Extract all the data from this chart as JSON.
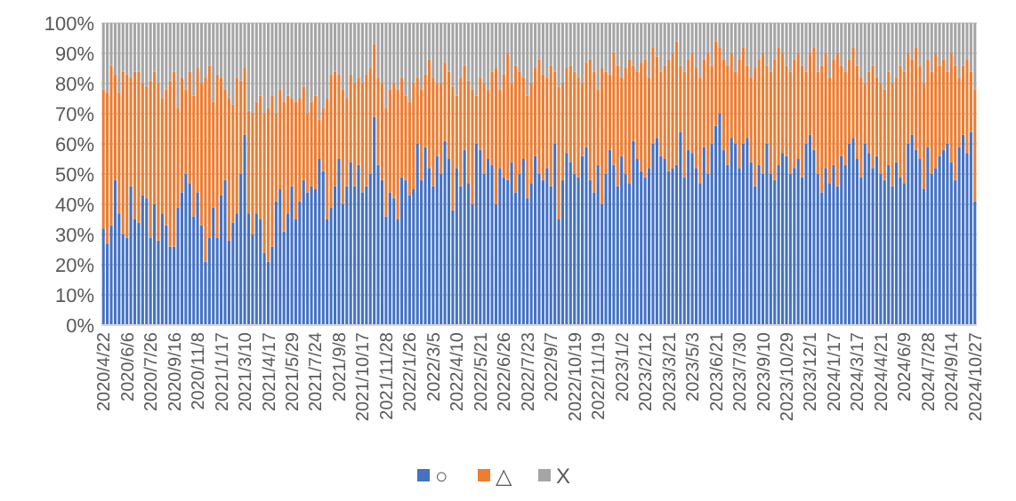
{
  "chart_data": {
    "type": "bar",
    "stacked": true,
    "categories": [
      "2020/4/22",
      null,
      null,
      null,
      null,
      null,
      "2020/6/6",
      null,
      null,
      null,
      null,
      null,
      "2020/7/26",
      null,
      null,
      null,
      null,
      null,
      "2020/9/16",
      null,
      null,
      null,
      null,
      null,
      "2020/11/8",
      null,
      null,
      null,
      null,
      null,
      "2021/1/17",
      null,
      null,
      null,
      null,
      null,
      "2021/3/10",
      null,
      null,
      null,
      null,
      null,
      "2021/4/17",
      null,
      null,
      null,
      null,
      null,
      "2021/5/29",
      null,
      null,
      null,
      null,
      null,
      "2021/7/24",
      null,
      null,
      null,
      null,
      null,
      "2021/9/8",
      null,
      null,
      null,
      null,
      null,
      "2021/10/17",
      null,
      null,
      null,
      null,
      null,
      "2021/11/28",
      null,
      null,
      null,
      null,
      null,
      "2022/1/26",
      null,
      null,
      null,
      null,
      null,
      "2022/3/5",
      null,
      null,
      null,
      null,
      null,
      "2022/4/10",
      null,
      null,
      null,
      null,
      null,
      "2022/5/21",
      null,
      null,
      null,
      null,
      null,
      "2022/6/26",
      null,
      null,
      null,
      null,
      null,
      "2022/7/23",
      null,
      null,
      null,
      null,
      null,
      "2022/9/7",
      null,
      null,
      null,
      null,
      null,
      "2022/10/19",
      null,
      null,
      null,
      null,
      null,
      "2022/11/19",
      null,
      null,
      null,
      null,
      null,
      "2023/1/2",
      null,
      null,
      null,
      null,
      null,
      "2023/2/12",
      null,
      null,
      null,
      null,
      null,
      "2023/3/21",
      null,
      null,
      null,
      null,
      null,
      "2023/5/3",
      null,
      null,
      null,
      null,
      null,
      "2023/6/21",
      null,
      null,
      null,
      null,
      null,
      "2023/7/30",
      null,
      null,
      null,
      null,
      null,
      "2023/9/10",
      null,
      null,
      null,
      null,
      null,
      "2023/10/29",
      null,
      null,
      null,
      null,
      null,
      "2023/12/1",
      null,
      null,
      null,
      null,
      null,
      "2024/1/17",
      null,
      null,
      null,
      null,
      null,
      "2024/3/17",
      null,
      null,
      null,
      null,
      null,
      "2024/4/21",
      null,
      null,
      null,
      null,
      null,
      "2024/6/9",
      null,
      null,
      null,
      null,
      null,
      "2024/7/28",
      null,
      null,
      null,
      null,
      null,
      "2024/9/14",
      null,
      null,
      null,
      null,
      null,
      "2024/10/27"
    ],
    "series": [
      {
        "name": "○",
        "color": "#4472c4",
        "values": [
          32,
          27,
          33,
          48,
          37,
          30,
          29,
          46,
          35,
          34,
          43,
          42,
          29,
          40,
          28,
          37,
          33,
          26,
          26,
          39,
          44,
          50,
          47,
          36,
          44,
          33,
          21,
          29,
          39,
          29,
          43,
          48,
          28,
          34,
          37,
          50,
          63,
          37,
          30,
          37,
          35,
          24,
          21,
          26,
          41,
          45,
          31,
          37,
          46,
          35,
          41,
          48,
          44,
          46,
          45,
          55,
          51,
          35,
          39,
          46,
          55,
          40,
          46,
          54,
          46,
          53,
          44,
          46,
          50,
          69,
          53,
          48,
          36,
          44,
          42,
          35,
          49,
          48,
          43,
          45,
          60,
          48,
          59,
          52,
          46,
          56,
          50,
          61,
          55,
          38,
          52,
          46,
          58,
          47,
          40,
          60,
          58,
          50,
          55,
          53,
          40,
          52,
          49,
          48,
          54,
          44,
          50,
          55,
          42,
          47,
          56,
          50,
          48,
          52,
          46,
          60,
          35,
          48,
          57,
          54,
          50,
          49,
          56,
          59,
          48,
          44,
          53,
          40,
          50,
          58,
          53,
          46,
          56,
          50,
          47,
          61,
          55,
          51,
          49,
          52,
          60,
          62,
          56,
          55,
          51,
          52,
          53,
          64,
          49,
          58,
          57,
          52,
          47,
          59,
          50,
          60,
          66,
          70,
          58,
          53,
          62,
          60,
          52,
          60,
          62,
          54,
          46,
          53,
          50,
          60,
          50,
          48,
          53,
          57,
          56,
          50,
          52,
          55,
          49,
          60,
          63,
          58,
          50,
          44,
          52,
          47,
          53,
          46,
          56,
          53,
          60,
          62,
          55,
          49,
          60,
          57,
          52,
          56,
          50,
          48,
          53,
          46,
          54,
          49,
          47,
          60,
          63,
          58,
          55,
          45,
          59,
          50,
          52,
          56,
          58,
          60,
          54,
          48,
          59,
          63,
          57,
          64,
          41
        ]
      },
      {
        "name": "△",
        "color": "#ed7d31",
        "values": [
          46,
          50,
          53,
          35,
          40,
          54,
          54,
          36,
          49,
          50,
          37,
          37,
          52,
          44,
          52,
          38,
          45,
          55,
          58,
          33,
          38,
          28,
          37,
          40,
          41,
          47,
          61,
          57,
          35,
          54,
          39,
          30,
          47,
          39,
          45,
          31,
          22,
          34,
          40,
          37,
          41,
          46,
          51,
          50,
          29,
          33,
          43,
          39,
          29,
          39,
          34,
          31,
          26,
          28,
          31,
          13,
          21,
          40,
          44,
          38,
          28,
          38,
          29,
          29,
          34,
          29,
          36,
          37,
          35,
          24,
          29,
          32,
          36,
          34,
          38,
          43,
          33,
          28,
          31,
          35,
          22,
          30,
          24,
          36,
          36,
          24,
          30,
          26,
          29,
          41,
          24,
          36,
          28,
          34,
          38,
          16,
          24,
          30,
          23,
          31,
          45,
          26,
          34,
          42,
          26,
          42,
          34,
          27,
          34,
          33,
          29,
          38,
          35,
          30,
          40,
          24,
          44,
          32,
          28,
          32,
          34,
          33,
          24,
          28,
          40,
          40,
          25,
          45,
          34,
          25,
          37,
          40,
          26,
          35,
          41,
          25,
          29,
          36,
          39,
          30,
          32,
          27,
          28,
          31,
          37,
          38,
          41,
          22,
          35,
          30,
          33,
          33,
          35,
          29,
          40,
          26,
          28,
          22,
          30,
          33,
          28,
          24,
          36,
          32,
          24,
          28,
          39,
          35,
          40,
          26,
          34,
          40,
          39,
          33,
          30,
          34,
          36,
          35,
          37,
          24,
          27,
          34,
          34,
          42,
          38,
          35,
          35,
          44,
          30,
          31,
          28,
          30,
          31,
          33,
          20,
          27,
          34,
          26,
          30,
          30,
          31,
          34,
          28,
          37,
          37,
          30,
          25,
          34,
          31,
          35,
          29,
          34,
          38,
          30,
          30,
          24,
          36,
          38,
          23,
          23,
          31,
          20,
          37
        ]
      },
      {
        "name": "X",
        "color": "#a5a5a5",
        "values": [
          22,
          23,
          14,
          17,
          23,
          16,
          17,
          18,
          16,
          16,
          20,
          21,
          19,
          16,
          20,
          25,
          22,
          19,
          16,
          28,
          18,
          22,
          16,
          24,
          15,
          20,
          18,
          14,
          26,
          17,
          18,
          22,
          25,
          27,
          18,
          19,
          15,
          29,
          30,
          26,
          24,
          30,
          28,
          24,
          30,
          22,
          26,
          24,
          25,
          26,
          25,
          21,
          30,
          26,
          24,
          32,
          28,
          25,
          17,
          16,
          17,
          22,
          25,
          17,
          20,
          18,
          20,
          17,
          15,
          7,
          18,
          20,
          28,
          22,
          20,
          22,
          18,
          24,
          26,
          20,
          18,
          22,
          17,
          12,
          18,
          20,
          20,
          13,
          16,
          21,
          24,
          18,
          14,
          19,
          22,
          24,
          18,
          20,
          22,
          16,
          15,
          22,
          17,
          10,
          20,
          14,
          16,
          18,
          24,
          20,
          15,
          12,
          17,
          18,
          14,
          16,
          21,
          20,
          15,
          14,
          16,
          18,
          20,
          13,
          12,
          16,
          22,
          15,
          16,
          17,
          10,
          14,
          18,
          15,
          12,
          14,
          16,
          13,
          12,
          18,
          8,
          11,
          16,
          14,
          12,
          10,
          6,
          14,
          16,
          12,
          10,
          15,
          18,
          12,
          10,
          14,
          6,
          8,
          12,
          14,
          10,
          16,
          12,
          8,
          14,
          18,
          15,
          12,
          10,
          14,
          16,
          12,
          8,
          10,
          14,
          16,
          12,
          10,
          14,
          16,
          10,
          8,
          16,
          14,
          10,
          18,
          12,
          10,
          14,
          16,
          12,
          8,
          14,
          18,
          20,
          16,
          14,
          18,
          20,
          22,
          16,
          20,
          18,
          14,
          16,
          10,
          12,
          8,
          14,
          20,
          12,
          16,
          10,
          14,
          12,
          16,
          10,
          14,
          18,
          14,
          12,
          16,
          22
        ]
      }
    ],
    "ylim": [
      0,
      100
    ],
    "yticks": [
      {
        "value": 0,
        "label": "0%"
      },
      {
        "value": 10,
        "label": "10%"
      },
      {
        "value": 20,
        "label": "20%"
      },
      {
        "value": 30,
        "label": "30%"
      },
      {
        "value": 40,
        "label": "40%"
      },
      {
        "value": 50,
        "label": "50%"
      },
      {
        "value": 60,
        "label": "60%"
      },
      {
        "value": 70,
        "label": "70%"
      },
      {
        "value": 80,
        "label": "80%"
      },
      {
        "value": 90,
        "label": "90%"
      },
      {
        "value": 100,
        "label": "100%"
      }
    ],
    "grid": "y",
    "legend": "bottom"
  }
}
